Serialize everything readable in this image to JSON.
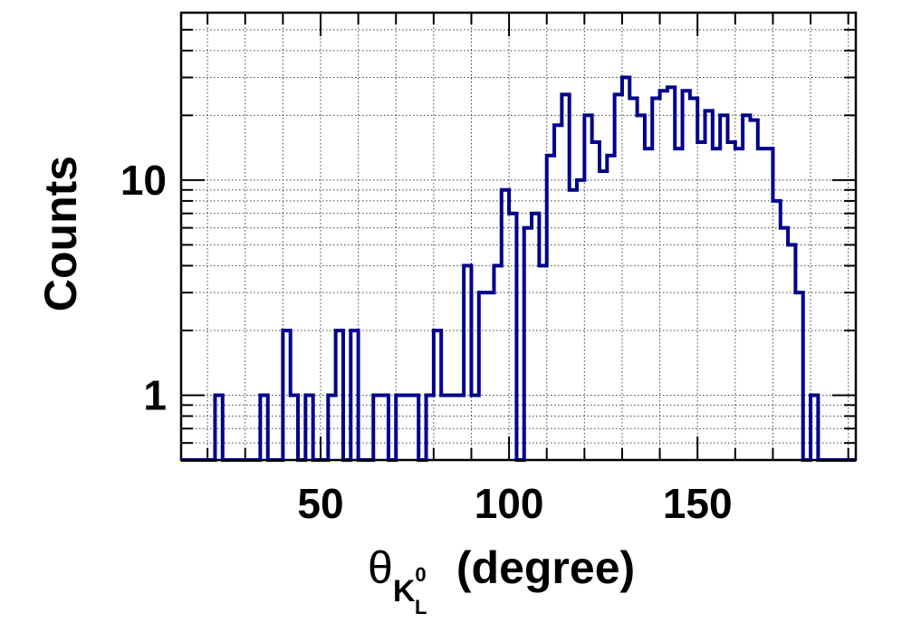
{
  "chart_data": {
    "type": "histogram",
    "title": "",
    "xlabel": {
      "symbol": "θ",
      "sub": "K",
      "sub_sup": "0",
      "sub_sub": "L",
      "unit": " (degree)"
    },
    "ylabel": "Counts",
    "x_ticks": [
      "50",
      "100",
      "150"
    ],
    "y_ticks": [
      "1",
      "10"
    ],
    "xlim": [
      13,
      192
    ],
    "ylim": [
      0.5,
      60
    ],
    "y_scale": "log",
    "grid": true,
    "legend": "none",
    "line_color": "#00008b",
    "bin_width": 2,
    "bins": [
      [
        13,
        0
      ],
      [
        15,
        0
      ],
      [
        17,
        0
      ],
      [
        19,
        0
      ],
      [
        21,
        0
      ],
      [
        23,
        1
      ],
      [
        25,
        0
      ],
      [
        27,
        0
      ],
      [
        29,
        0
      ],
      [
        31,
        0
      ],
      [
        33,
        0
      ],
      [
        35,
        1
      ],
      [
        37,
        0
      ],
      [
        39,
        0
      ],
      [
        41,
        2
      ],
      [
        43,
        1
      ],
      [
        45,
        0
      ],
      [
        47,
        1
      ],
      [
        49,
        0
      ],
      [
        51,
        0
      ],
      [
        53,
        1
      ],
      [
        55,
        2
      ],
      [
        57,
        0
      ],
      [
        59,
        2
      ],
      [
        61,
        0
      ],
      [
        63,
        0
      ],
      [
        65,
        1
      ],
      [
        67,
        1
      ],
      [
        69,
        0
      ],
      [
        71,
        1
      ],
      [
        73,
        1
      ],
      [
        75,
        1
      ],
      [
        77,
        0
      ],
      [
        79,
        1
      ],
      [
        81,
        2
      ],
      [
        83,
        1
      ],
      [
        85,
        1
      ],
      [
        87,
        1
      ],
      [
        89,
        4
      ],
      [
        91,
        1
      ],
      [
        93,
        3
      ],
      [
        95,
        3
      ],
      [
        97,
        4
      ],
      [
        99,
        9
      ],
      [
        101,
        7
      ],
      [
        103,
        0
      ],
      [
        105,
        6
      ],
      [
        107,
        7
      ],
      [
        109,
        4
      ],
      [
        111,
        13
      ],
      [
        113,
        18
      ],
      [
        115,
        25
      ],
      [
        117,
        9
      ],
      [
        119,
        10
      ],
      [
        121,
        20
      ],
      [
        123,
        15
      ],
      [
        125,
        11
      ],
      [
        127,
        13
      ],
      [
        129,
        25
      ],
      [
        131,
        30
      ],
      [
        133,
        24
      ],
      [
        135,
        20
      ],
      [
        137,
        14
      ],
      [
        139,
        24
      ],
      [
        141,
        26
      ],
      [
        143,
        27
      ],
      [
        145,
        14
      ],
      [
        147,
        26
      ],
      [
        149,
        24
      ],
      [
        151,
        15
      ],
      [
        153,
        21
      ],
      [
        155,
        14
      ],
      [
        157,
        20
      ],
      [
        159,
        15
      ],
      [
        161,
        14
      ],
      [
        163,
        20
      ],
      [
        165,
        19
      ],
      [
        167,
        14
      ],
      [
        169,
        14
      ],
      [
        171,
        8
      ],
      [
        173,
        6
      ],
      [
        175,
        5
      ],
      [
        177,
        3
      ],
      [
        179,
        0
      ],
      [
        181,
        1
      ],
      [
        183,
        0
      ],
      [
        185,
        0
      ],
      [
        187,
        0
      ],
      [
        189,
        0
      ],
      [
        191,
        0
      ]
    ]
  }
}
